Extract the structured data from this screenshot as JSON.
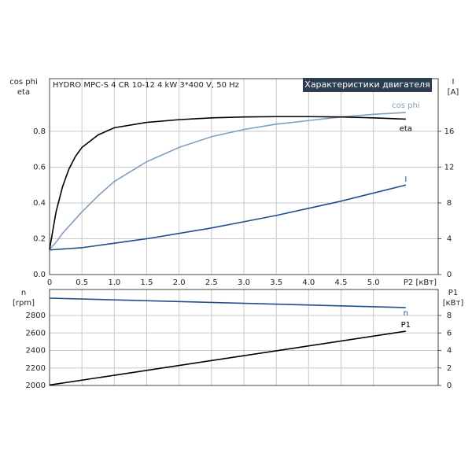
{
  "chart_data": [
    {
      "type": "line",
      "title": "HYDRO MPC-S 4 CR 10-12   4 kW   3*400 V, 50 Hz",
      "badge": "Характеристики двигателя",
      "ylabel": [
        "cos phi",
        "eta"
      ],
      "y2label": [
        "I",
        "[A]"
      ],
      "xlabel": "P2 [кВт]",
      "x": [
        0,
        0.1,
        0.2,
        0.3,
        0.4,
        0.5,
        0.75,
        1,
        1.5,
        2,
        2.5,
        3,
        3.5,
        4,
        4.5,
        5,
        5.5
      ],
      "xlim": [
        0,
        6
      ],
      "xticks": [
        0,
        0.5,
        {
          "value": 1,
          "label": "1.0"
        },
        1.5,
        {
          "value": 2,
          "label": "2.0"
        },
        2.5,
        {
          "value": 3,
          "label": "3.0"
        },
        3.5,
        {
          "value": 4,
          "label": "4.0"
        },
        4.5,
        {
          "value": 5,
          "label": "5.0"
        }
      ],
      "show_xtick_labels": true,
      "ylim": [
        0,
        1.094
      ],
      "yticks": [
        {
          "value": 0,
          "label": "0.0"
        },
        0.2,
        0.4,
        0.6,
        0.8
      ],
      "y2lim": [
        0,
        21.88
      ],
      "y2ticks": [
        0,
        4,
        8,
        12,
        16
      ],
      "grid": true,
      "series": [
        {
          "name": "cos phi",
          "color": "#7f9fc2",
          "values": [
            0.14,
            0.18,
            0.23,
            0.27,
            0.31,
            0.35,
            0.44,
            0.52,
            0.63,
            0.71,
            0.77,
            0.81,
            0.84,
            0.86,
            0.88,
            0.895,
            0.905
          ]
        },
        {
          "name": "eta",
          "color": "#000000",
          "values": [
            0.14,
            0.35,
            0.49,
            0.59,
            0.66,
            0.71,
            0.78,
            0.82,
            0.85,
            0.865,
            0.875,
            0.88,
            0.882,
            0.882,
            0.88,
            0.875,
            0.868
          ]
        },
        {
          "name": "I",
          "color": "#1f4e8c",
          "axis": "y2",
          "values": [
            2.75,
            2.8,
            2.85,
            2.9,
            2.95,
            3.0,
            3.25,
            3.5,
            4.0,
            4.6,
            5.2,
            5.9,
            6.6,
            7.4,
            8.2,
            9.1,
            10.0
          ]
        }
      ]
    },
    {
      "type": "line",
      "ylabel": [
        "n",
        "[rpm]"
      ],
      "y2label": [
        "P1",
        "[кВт]"
      ],
      "x": [
        0,
        5.5
      ],
      "xlim": [
        0,
        6
      ],
      "xticks": [
        0,
        0.5,
        1,
        1.5,
        2,
        2.5,
        3,
        3.5,
        4,
        4.5,
        5
      ],
      "show_xtick_labels": false,
      "ylim": [
        2000,
        3097
      ],
      "yticks": [
        2000,
        2200,
        2400,
        2600,
        2800
      ],
      "y2lim": [
        0,
        10.97
      ],
      "y2ticks": [
        0,
        2,
        4,
        6,
        8
      ],
      "grid": true,
      "series": [
        {
          "name": "n",
          "color": "#1f4e8c",
          "values": [
            2998,
            2890
          ]
        },
        {
          "name": "P1",
          "color": "#000000",
          "axis": "y2",
          "values": [
            0.05,
            6.2
          ]
        }
      ]
    }
  ]
}
